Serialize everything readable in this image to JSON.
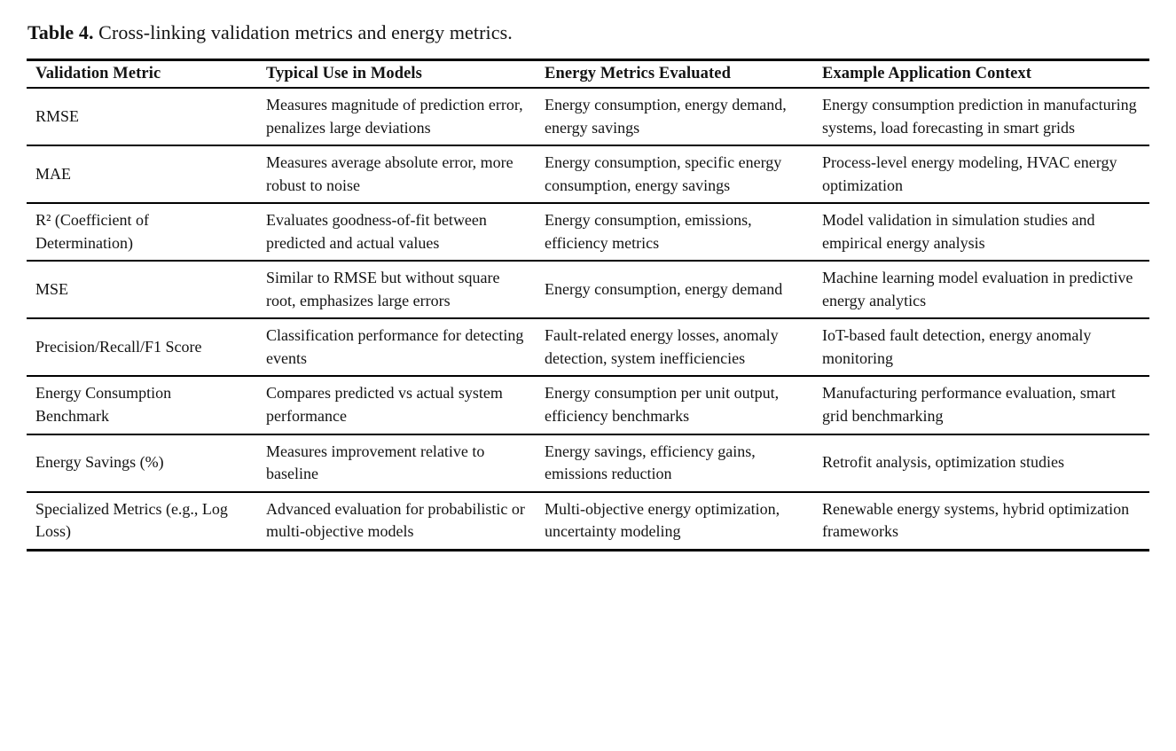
{
  "table": {
    "title_label": "Table 4.",
    "title_text": " Cross-linking validation metrics and energy metrics.",
    "headers": [
      "Validation Metric",
      "Typical Use in Models",
      "Energy Metrics Evaluated",
      "Example Application Context"
    ],
    "rows": [
      {
        "metric": "RMSE",
        "use": "Measures magnitude of prediction error, penalizes large deviations",
        "energy_metrics": "Energy consumption, energy demand, energy savings",
        "context": "Energy consumption prediction in manufacturing systems, load forecasting in smart grids"
      },
      {
        "metric": "MAE",
        "use": "Measures average absolute error, more robust to noise",
        "energy_metrics": "Energy consumption, specific energy consumption, energy savings",
        "context": "Process-level energy modeling, HVAC energy optimization"
      },
      {
        "metric": "R² (Coefficient of Determination)",
        "use": "Evaluates goodness-of-fit between predicted and actual values",
        "energy_metrics": "Energy consumption, emissions, efficiency metrics",
        "context": "Model validation in simulation studies and empirical energy analysis"
      },
      {
        "metric": "MSE",
        "use": "Similar to RMSE but without square root, emphasizes large errors",
        "energy_metrics": "Energy consumption, energy demand",
        "context": "Machine learning model evaluation in predictive energy analytics"
      },
      {
        "metric": "Precision/Recall/F1 Score",
        "use": "Classification performance for detecting events",
        "energy_metrics": "Fault-related energy losses, anomaly detection, system inefficiencies",
        "context": "IoT-based fault detection, energy anomaly monitoring"
      },
      {
        "metric": "Energy Consumption Benchmark",
        "use": "Compares predicted vs actual system performance",
        "energy_metrics": "Energy consumption per unit output, efficiency benchmarks",
        "context": "Manufacturing performance evaluation, smart grid benchmarking"
      },
      {
        "metric": "Energy Savings (%)",
        "use": "Measures improvement relative to baseline",
        "energy_metrics": "Energy savings, efficiency gains, emissions reduction",
        "context": "Retrofit analysis, optimization studies"
      },
      {
        "metric": "Specialized Metrics (e.g., Log Loss)",
        "use": "Advanced evaluation for probabilistic or multi-objective models",
        "energy_metrics": "Multi-objective energy optimization, uncertainty modeling",
        "context": "Renewable energy systems, hybrid optimization frameworks"
      }
    ]
  }
}
